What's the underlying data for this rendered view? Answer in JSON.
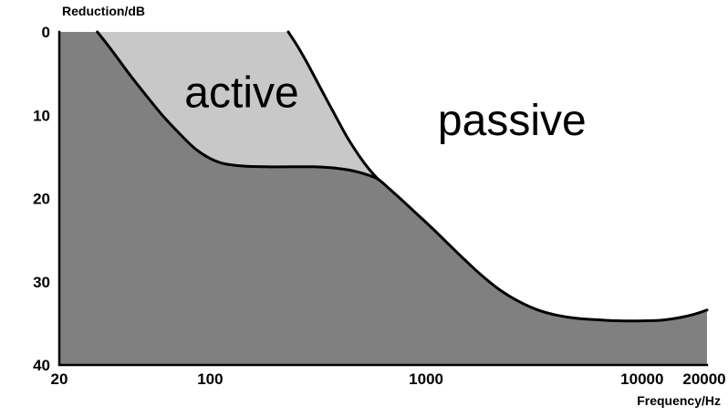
{
  "colors": {
    "background": "#ffffff",
    "dark_region": "#808080",
    "light_region": "#c8c8c8",
    "curve": "#000000",
    "axis": "#000000",
    "text": "#000000"
  },
  "chart_data": {
    "type": "area",
    "title": "",
    "x_axis": {
      "label": "Frequency/Hz",
      "scale": "log",
      "min": 20,
      "max": 20000,
      "ticks": [
        20,
        100,
        1000,
        10000,
        20000
      ],
      "tick_labels": [
        "20",
        "100",
        "1000",
        "10000",
        "20000"
      ]
    },
    "y_axis": {
      "label": "Reduction/dB",
      "min": 0,
      "max": 40,
      "inverted": true,
      "ticks": [
        0,
        10,
        20,
        30,
        40
      ],
      "tick_labels": [
        "0",
        "10",
        "20",
        "30",
        "40"
      ]
    },
    "regions": [
      {
        "name": "active",
        "label": "active",
        "label_f": 140,
        "label_db": 7.2
      },
      {
        "name": "passive",
        "label": "passive",
        "label_f": 2500,
        "label_db": 10.5
      }
    ],
    "series": [
      {
        "name": "active_plus_passive",
        "points": [
          [
            30,
            0
          ],
          [
            35,
            2.2
          ],
          [
            42,
            5
          ],
          [
            50,
            7.5
          ],
          [
            60,
            10
          ],
          [
            72,
            12.2
          ],
          [
            85,
            14
          ],
          [
            100,
            15.2
          ],
          [
            115,
            15.8
          ],
          [
            140,
            16.1
          ],
          [
            180,
            16.2
          ],
          [
            240,
            16.2
          ],
          [
            300,
            16.2
          ],
          [
            360,
            16.3
          ],
          [
            420,
            16.5
          ],
          [
            480,
            16.8
          ],
          [
            540,
            17.2
          ],
          [
            600,
            17.7
          ]
        ]
      },
      {
        "name": "passive_only",
        "points": [
          [
            230,
            0
          ],
          [
            255,
            1.8
          ],
          [
            285,
            4
          ],
          [
            325,
            6.8
          ],
          [
            375,
            9.8
          ],
          [
            430,
            12.6
          ],
          [
            490,
            14.9
          ],
          [
            545,
            16.5
          ],
          [
            600,
            17.7
          ],
          [
            680,
            18.9
          ],
          [
            780,
            20.3
          ],
          [
            900,
            21.8
          ],
          [
            1050,
            23.4
          ],
          [
            1250,
            25.3
          ],
          [
            1500,
            27.3
          ],
          [
            1800,
            29.2
          ],
          [
            2200,
            31
          ],
          [
            2700,
            32.4
          ],
          [
            3300,
            33.4
          ],
          [
            4000,
            34
          ],
          [
            5000,
            34.4
          ],
          [
            6500,
            34.6
          ],
          [
            8000,
            34.7
          ],
          [
            10000,
            34.7
          ],
          [
            12500,
            34.6
          ],
          [
            15000,
            34.3
          ],
          [
            17500,
            33.9
          ],
          [
            20000,
            33.4
          ]
        ]
      }
    ]
  }
}
